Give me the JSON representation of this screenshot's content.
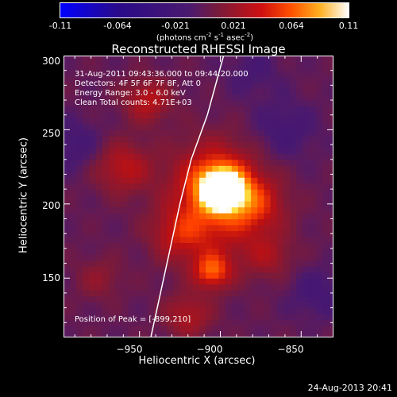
{
  "colorbar": {
    "ticks": [
      "-0.11",
      "-0.064",
      "-0.021",
      "0.021",
      "0.064",
      "0.11"
    ],
    "units_main": "(photons cm",
    "units_exp1": "-2",
    "units_mid1": " s",
    "units_exp2": "-1",
    "units_mid2": " asec",
    "units_exp3": "-2",
    "units_end": ")"
  },
  "chart_data": {
    "type": "heatmap",
    "title": "Reconstructed RHESSI Image",
    "xlabel": "Heliocentric X (arcsec)",
    "ylabel": "Heliocentric Y (arcsec)",
    "xlim": [
      -997,
      -830
    ],
    "ylim": [
      110,
      300
    ],
    "xticks": [
      -950,
      -900,
      -850
    ],
    "yticks": [
      150,
      200,
      250,
      300
    ],
    "xtick_labels": [
      "−950",
      "−900",
      "−850"
    ],
    "ytick_labels": [
      "150",
      "200",
      "250",
      "300"
    ],
    "color_range": [
      -0.11,
      0.11
    ],
    "colormap": [
      "#0000ff",
      "#2a0a8a",
      "#4b1a6e",
      "#7a1a3a",
      "#c01010",
      "#ff4000",
      "#ff9000",
      "#ffe040",
      "#ffffff"
    ],
    "peak": {
      "x": -899,
      "y": 210
    },
    "limb_points": [
      [
        -943,
        110
      ],
      [
        -933,
        160
      ],
      [
        -925,
        200
      ],
      [
        -918,
        230
      ],
      [
        -908,
        260
      ],
      [
        -898,
        300
      ]
    ],
    "sources": [
      {
        "x": -899,
        "y": 210,
        "amp": 0.11,
        "sigma": 10
      },
      {
        "x": -903,
        "y": 218,
        "amp": 0.05,
        "sigma": 18
      },
      {
        "x": -905,
        "y": 155,
        "amp": 0.065,
        "sigma": 8
      },
      {
        "x": -900,
        "y": 190,
        "amp": 0.04,
        "sigma": 22
      },
      {
        "x": -925,
        "y": 180,
        "amp": 0.035,
        "sigma": 12
      },
      {
        "x": -878,
        "y": 200,
        "amp": 0.035,
        "sigma": 12
      },
      {
        "x": -960,
        "y": 225,
        "amp": 0.04,
        "sigma": 12
      },
      {
        "x": -945,
        "y": 270,
        "amp": 0.04,
        "sigma": 10
      },
      {
        "x": -920,
        "y": 125,
        "amp": 0.035,
        "sigma": 10
      },
      {
        "x": -870,
        "y": 165,
        "amp": 0.025,
        "sigma": 10
      },
      {
        "x": -975,
        "y": 150,
        "amp": 0.02,
        "sigma": 10
      },
      {
        "x": -860,
        "y": 250,
        "amp": -0.02,
        "sigma": 14
      },
      {
        "x": -990,
        "y": 240,
        "amp": -0.02,
        "sigma": 12
      },
      {
        "x": -840,
        "y": 140,
        "amp": -0.02,
        "sigma": 12
      },
      {
        "x": -880,
        "y": 290,
        "amp": -0.015,
        "sigma": 12
      }
    ]
  },
  "info": {
    "time": "31-Aug-2011 09:43:36.000 to 09:44:20.000",
    "detectors": "Detectors: 4F 5F 6F 7F 8F, Att 0",
    "energy": "Energy Range: 3.0 - 6.0 keV",
    "clean": "Clean     Total counts: 4.71E+03",
    "peak": "Position of Peak = [-899,210]"
  },
  "footer": "24-Aug-2013 20:41"
}
